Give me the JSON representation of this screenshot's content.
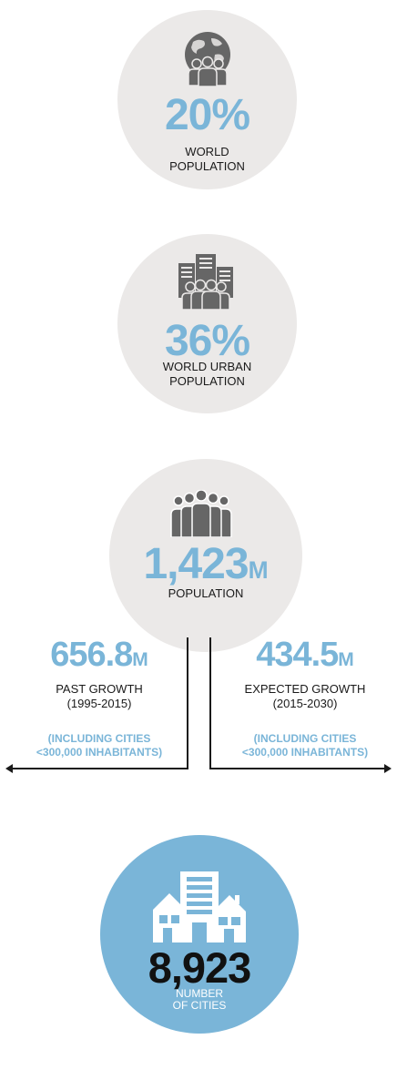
{
  "colors": {
    "accent": "#7ab5d8",
    "circle_grey": "#ebe9e8",
    "icon_grey": "#666666",
    "text_dark": "#1a1a1a"
  },
  "stats": [
    {
      "icon": "globe-people-icon",
      "value": "20%",
      "label_line1": "WORLD",
      "label_line2": "POPULATION"
    },
    {
      "icon": "buildings-people-icon",
      "value": "36%",
      "label_line1": "WORLD URBAN",
      "label_line2": "POPULATION"
    },
    {
      "icon": "people-group-icon",
      "value": "1,423",
      "unit": "M",
      "label_line1": "POPULATION"
    }
  ],
  "past_growth": {
    "value": "656.8",
    "unit": "M",
    "label": "PAST GROWTH",
    "period": "(1995-2015)",
    "note_line1": "(INCLUDING CITIES",
    "note_line2": "<300,000 INHABITANTS)"
  },
  "expected_growth": {
    "value": "434.5",
    "unit": "M",
    "label": "EXPECTED GROWTH",
    "period": "(2015-2030)",
    "note_line1": "(INCLUDING CITIES",
    "note_line2": "<300,000 INHABITANTS)"
  },
  "cities": {
    "icon": "city-buildings-icon",
    "value": "8,923",
    "label_line1": "NUMBER",
    "label_line2": "OF CITIES"
  }
}
